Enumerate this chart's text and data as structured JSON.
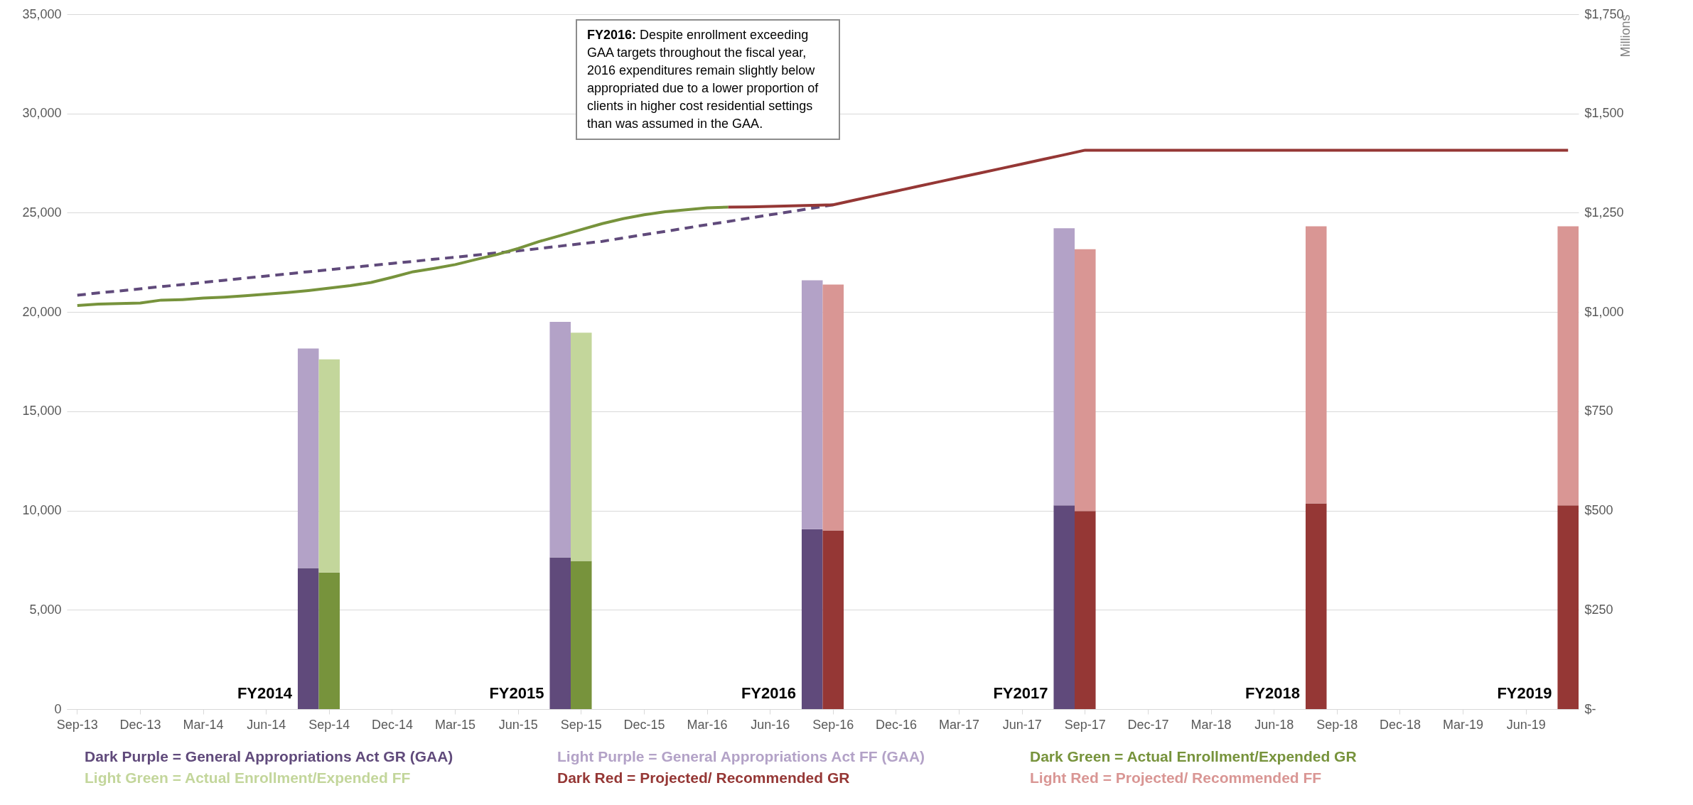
{
  "chart_data": {
    "type": "bar",
    "stacked": true,
    "grid": "y",
    "legend": "bottom",
    "y2label": "Millions",
    "categories": [
      "Sep-13",
      null,
      null,
      "Dec-13",
      null,
      null,
      "Mar-14",
      null,
      null,
      "Jun-14",
      null,
      null,
      "Sep-14",
      null,
      null,
      "Dec-14",
      null,
      null,
      "Mar-15",
      null,
      null,
      "Jun-15",
      null,
      null,
      "Sep-15",
      null,
      null,
      "Dec-15",
      null,
      null,
      "Mar-16",
      null,
      null,
      "Jun-16",
      null,
      null,
      "Sep-16",
      null,
      null,
      "Dec-16",
      null,
      null,
      "Mar-17",
      null,
      null,
      "Jun-17",
      null,
      null,
      "Sep-17",
      null,
      null,
      "Dec-17",
      null,
      null,
      "Mar-18",
      null,
      null,
      "Jun-18",
      null,
      null,
      "Sep-18",
      null,
      null,
      "Dec-18",
      null,
      null,
      "Mar-19",
      null,
      null,
      "Jun-19",
      null,
      null
    ],
    "ylim": [
      0,
      35000
    ],
    "yticks": [
      0,
      {
        "value": 5000,
        "label": "5,000"
      },
      {
        "value": 10000,
        "label": "10,000"
      },
      {
        "value": 15000,
        "label": "15,000"
      },
      {
        "value": 20000,
        "label": "20,000"
      },
      {
        "value": 25000,
        "label": "25,000"
      },
      {
        "value": 30000,
        "label": "30,000"
      },
      {
        "value": 35000,
        "label": "35,000"
      }
    ],
    "y2lim": [
      0,
      1750
    ],
    "y2ticks": [
      {
        "value": 0,
        "label": "$-"
      },
      {
        "value": 250,
        "label": "$250"
      },
      {
        "value": 500,
        "label": "$500"
      },
      {
        "value": 750,
        "label": "$750"
      },
      {
        "value": 1000,
        "label": "$1,000"
      },
      {
        "value": 1250,
        "label": "$1,250"
      },
      {
        "value": 1500,
        "label": "$1,500"
      },
      {
        "value": 1750,
        "label": "$1,750"
      }
    ],
    "series": [
      {
        "type": "line",
        "line_style": "dashed",
        "color": "#604a7b",
        "values": [
          20850,
          20960,
          21060,
          21170,
          21280,
          21380,
          21490,
          21600,
          21710,
          21810,
          21920,
          22030,
          22130,
          22240,
          22340,
          22450,
          22550,
          22660,
          22760,
          22870,
          22980,
          23080,
          23200,
          23320,
          23440,
          23560,
          23730,
          23900,
          24060,
          24230,
          24400,
          24560,
          24730,
          24900,
          25060,
          25230,
          25400,
          null,
          null,
          null,
          null,
          null,
          null,
          null,
          null,
          null,
          null,
          null,
          null,
          null,
          null,
          null,
          null,
          null,
          null,
          null,
          null,
          null,
          null,
          null,
          null,
          null,
          null,
          null,
          null,
          null,
          null,
          null,
          null,
          null,
          null,
          null
        ]
      },
      {
        "type": "line",
        "line_style": "solid",
        "color": "#77933c",
        "values": [
          20330,
          20400,
          20430,
          20450,
          20600,
          20620,
          20700,
          20750,
          20820,
          20900,
          20980,
          21080,
          21200,
          21330,
          21490,
          21750,
          22030,
          22200,
          22390,
          22650,
          22900,
          23200,
          23550,
          23850,
          24150,
          24450,
          24700,
          24900,
          25050,
          25150,
          25250,
          25280,
          null,
          null,
          null,
          null,
          null,
          null,
          null,
          null,
          null,
          null,
          null,
          null,
          null,
          null,
          null,
          null,
          null,
          null,
          null,
          null,
          null,
          null,
          null,
          null,
          null,
          null,
          null,
          null,
          null,
          null,
          null,
          null,
          null,
          null,
          null,
          null,
          null,
          null,
          null,
          null
        ]
      },
      {
        "type": "line",
        "line_style": "solid",
        "color": "#953735",
        "values": [
          null,
          null,
          null,
          null,
          null,
          null,
          null,
          null,
          null,
          null,
          null,
          null,
          null,
          null,
          null,
          null,
          null,
          null,
          null,
          null,
          null,
          null,
          null,
          null,
          null,
          null,
          null,
          null,
          null,
          null,
          null,
          25280,
          25290,
          25320,
          25350,
          25370,
          25400,
          25630,
          25860,
          26090,
          26320,
          26550,
          26780,
          27000,
          27230,
          27460,
          27690,
          27920,
          28150,
          28150,
          28150,
          28150,
          28150,
          28150,
          28150,
          28150,
          28150,
          28150,
          28150,
          28150,
          28150,
          28150,
          28150,
          28150,
          28150,
          28150,
          28150,
          28150,
          28150,
          28150,
          28150,
          28150
        ]
      },
      {
        "name": "Dark Purple = General Appropriations Act GR (GAA)",
        "axis": "y2",
        "color": "#604a7b",
        "values": [
          null,
          null,
          null,
          null,
          null,
          null,
          null,
          null,
          null,
          null,
          null,
          355,
          null,
          null,
          null,
          null,
          null,
          null,
          null,
          null,
          null,
          null,
          null,
          382,
          null,
          null,
          null,
          null,
          null,
          null,
          null,
          null,
          null,
          null,
          null,
          453,
          null,
          null,
          null,
          null,
          null,
          null,
          null,
          null,
          null,
          null,
          null,
          513,
          null,
          null,
          null,
          null,
          null,
          null,
          null,
          null,
          null,
          null,
          null,
          null,
          null,
          null,
          null,
          null,
          null,
          null,
          null,
          null,
          null,
          null,
          null,
          null
        ]
      },
      {
        "name": "Light Purple = General Appropriations Act FF (GAA)",
        "axis": "y2",
        "color": "#b3a2c7",
        "values": [
          null,
          null,
          null,
          null,
          null,
          null,
          null,
          null,
          null,
          null,
          null,
          553,
          null,
          null,
          null,
          null,
          null,
          null,
          null,
          null,
          null,
          null,
          null,
          593,
          null,
          null,
          null,
          null,
          null,
          null,
          null,
          null,
          null,
          null,
          null,
          627,
          null,
          null,
          null,
          null,
          null,
          null,
          null,
          null,
          null,
          null,
          null,
          698,
          null,
          null,
          null,
          null,
          null,
          null,
          null,
          null,
          null,
          null,
          null,
          null,
          null,
          null,
          null,
          null,
          null,
          null,
          null,
          null,
          null,
          null,
          null,
          null
        ]
      },
      {
        "name": "Dark Green = Actual Enrollment/Expended GR",
        "axis": "y2",
        "color": "#77933c",
        "values": [
          null,
          null,
          null,
          null,
          null,
          null,
          null,
          null,
          null,
          null,
          null,
          null,
          344,
          null,
          null,
          null,
          null,
          null,
          null,
          null,
          null,
          null,
          null,
          null,
          373,
          null,
          null,
          null,
          null,
          null,
          null,
          null,
          null,
          null,
          null,
          null,
          null,
          null,
          null,
          null,
          null,
          null,
          null,
          null,
          null,
          null,
          null,
          null,
          null,
          null,
          null,
          null,
          null,
          null,
          null,
          null,
          null,
          null,
          null,
          null,
          null,
          null,
          null,
          null,
          null,
          null,
          null,
          null,
          null,
          null,
          null,
          null
        ]
      },
      {
        "name": "Light Green = Actual Enrollment/Expended FF",
        "axis": "y2",
        "color": "#c3d69b",
        "values": [
          null,
          null,
          null,
          null,
          null,
          null,
          null,
          null,
          null,
          null,
          null,
          null,
          537,
          null,
          null,
          null,
          null,
          null,
          null,
          null,
          null,
          null,
          null,
          null,
          575,
          null,
          null,
          null,
          null,
          null,
          null,
          null,
          null,
          null,
          null,
          null,
          null,
          null,
          null,
          null,
          null,
          null,
          null,
          null,
          null,
          null,
          null,
          null,
          null,
          null,
          null,
          null,
          null,
          null,
          null,
          null,
          null,
          null,
          null,
          null,
          null,
          null,
          null,
          null,
          null,
          null,
          null,
          null,
          null,
          null,
          null,
          null
        ]
      },
      {
        "name": "Dark Red = Projected/ Recommended GR",
        "axis": "y2",
        "color": "#953735",
        "values": [
          null,
          null,
          null,
          null,
          null,
          null,
          null,
          null,
          null,
          null,
          null,
          null,
          null,
          null,
          null,
          null,
          null,
          null,
          null,
          null,
          null,
          null,
          null,
          null,
          null,
          null,
          null,
          null,
          null,
          null,
          null,
          null,
          null,
          null,
          null,
          null,
          450,
          null,
          null,
          null,
          null,
          null,
          null,
          null,
          null,
          null,
          null,
          null,
          499,
          null,
          null,
          null,
          null,
          null,
          null,
          null,
          null,
          null,
          null,
          518,
          null,
          null,
          null,
          null,
          null,
          null,
          null,
          null,
          null,
          null,
          null,
          513
        ]
      },
      {
        "name": "Light Red = Projected/ Recommended FF",
        "axis": "y2",
        "color": "#d99694",
        "values": [
          null,
          null,
          null,
          null,
          null,
          null,
          null,
          null,
          null,
          null,
          null,
          null,
          null,
          null,
          null,
          null,
          null,
          null,
          null,
          null,
          null,
          null,
          null,
          null,
          null,
          null,
          null,
          null,
          null,
          null,
          null,
          null,
          null,
          null,
          null,
          null,
          619,
          null,
          null,
          null,
          null,
          null,
          null,
          null,
          null,
          null,
          null,
          null,
          659,
          null,
          null,
          null,
          null,
          null,
          null,
          null,
          null,
          null,
          null,
          698,
          null,
          null,
          null,
          null,
          null,
          null,
          null,
          null,
          null,
          null,
          null,
          703
        ]
      }
    ],
    "annotations": [
      "FY2016: Despite enrollment exceeding GAA targets throughout the fiscal year, 2016 expenditures remain slightly below appropriated due to a lower proportion of clients in higher cost residential settings than was assumed in the GAA.",
      "FY2014",
      "FY2015",
      "FY2016",
      "FY2017",
      "FY2018",
      "FY2019"
    ]
  }
}
